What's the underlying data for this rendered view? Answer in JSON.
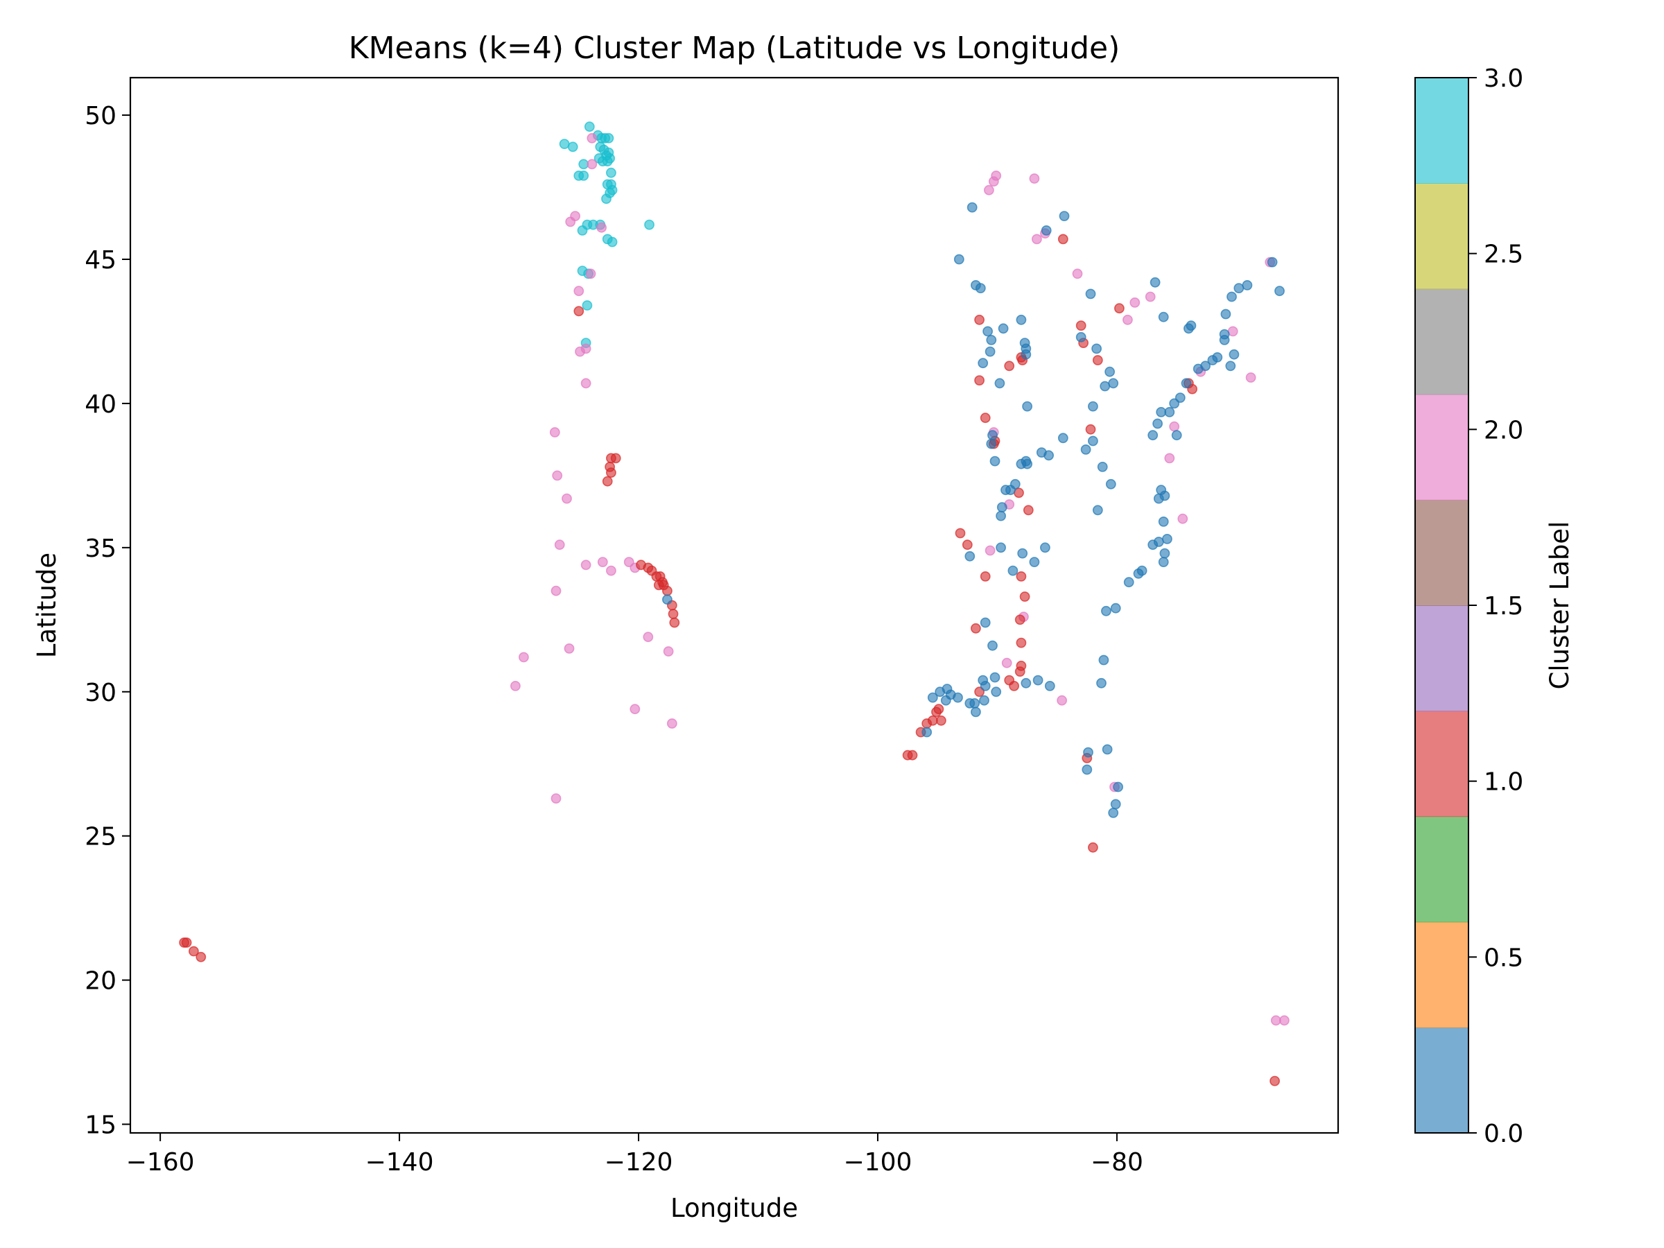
{
  "chart_data": {
    "type": "scatter",
    "title": "KMeans (k=4) Cluster Map (Latitude vs Longitude)",
    "xlabel": "Longitude",
    "ylabel": "Latitude",
    "xlim": [
      -162.5,
      -61.5
    ],
    "ylim": [
      14.7,
      51.3
    ],
    "xticks": [
      -160,
      -140,
      -120,
      -100,
      -80
    ],
    "xtick_labels": [
      "−160",
      "−140",
      "−120",
      "−100",
      "−80"
    ],
    "yticks": [
      15,
      20,
      25,
      30,
      35,
      40,
      45,
      50
    ],
    "ytick_labels": [
      "15",
      "20",
      "25",
      "30",
      "35",
      "40",
      "45",
      "50"
    ],
    "grid": false,
    "colorbar": {
      "label": "Cluster Label",
      "range": [
        0,
        3
      ],
      "ticks": [
        0,
        0.5,
        1,
        1.5,
        2,
        2.5,
        3
      ],
      "tick_labels": [
        "0.0",
        "0.5",
        "1.0",
        "1.5",
        "2.0",
        "2.5",
        "3.0"
      ],
      "colors": [
        "#1f77b4",
        "#ff7f0e",
        "#2ca02c",
        "#d62728",
        "#9467bd",
        "#8c564b",
        "#e377c2",
        "#7f7f7f",
        "#bcbd22",
        "#17becf"
      ]
    },
    "cluster_colors": {
      "0": "#1f77b4",
      "1": "#d62728",
      "2": "#e377c2",
      "3": "#17becf"
    },
    "series": [
      {
        "cluster": 3,
        "points": [
          [
            -124.1,
            49.6
          ],
          [
            -123.4,
            49.3
          ],
          [
            -123.1,
            49.2
          ],
          [
            -122.8,
            49.2
          ],
          [
            -122.5,
            49.2
          ],
          [
            -123.2,
            48.9
          ],
          [
            -122.9,
            48.8
          ],
          [
            -122.5,
            48.7
          ],
          [
            -123.3,
            48.5
          ],
          [
            -122.7,
            48.6
          ],
          [
            -122.4,
            48.5
          ],
          [
            -123.0,
            48.4
          ],
          [
            -122.6,
            48.4
          ],
          [
            -124.6,
            48.3
          ],
          [
            -122.3,
            48.0
          ],
          [
            -125.0,
            47.9
          ],
          [
            -124.6,
            47.9
          ],
          [
            -122.6,
            47.6
          ],
          [
            -122.3,
            47.6
          ],
          [
            -122.4,
            47.3
          ],
          [
            -122.2,
            47.4
          ],
          [
            -122.7,
            47.1
          ],
          [
            -126.2,
            49.0
          ],
          [
            -125.5,
            48.9
          ],
          [
            -119.1,
            46.2
          ],
          [
            -124.3,
            46.2
          ],
          [
            -123.8,
            46.2
          ],
          [
            -123.2,
            46.2
          ],
          [
            -124.7,
            46.0
          ],
          [
            -122.6,
            45.7
          ],
          [
            -122.2,
            45.6
          ],
          [
            -124.7,
            44.6
          ],
          [
            -124.2,
            44.5
          ],
          [
            -124.3,
            43.4
          ],
          [
            -124.4,
            42.1
          ]
        ]
      },
      {
        "cluster": 2,
        "points": [
          [
            -123.9,
            49.2
          ],
          [
            -123.9,
            48.3
          ],
          [
            -123.1,
            46.1
          ],
          [
            -125.7,
            46.3
          ],
          [
            -125.3,
            46.5
          ],
          [
            -124.0,
            44.5
          ],
          [
            -125.0,
            43.9
          ],
          [
            -124.4,
            41.9
          ],
          [
            -124.9,
            41.8
          ],
          [
            -124.4,
            40.7
          ],
          [
            -127.0,
            39.0
          ],
          [
            -126.8,
            37.5
          ],
          [
            -126.0,
            36.7
          ],
          [
            -126.6,
            35.1
          ],
          [
            -124.4,
            34.4
          ],
          [
            -123.0,
            34.5
          ],
          [
            -122.3,
            34.2
          ],
          [
            -120.8,
            34.5
          ],
          [
            -120.3,
            34.3
          ],
          [
            -126.9,
            33.5
          ],
          [
            -119.2,
            31.9
          ],
          [
            -117.5,
            31.4
          ],
          [
            -125.8,
            31.5
          ],
          [
            -129.6,
            31.2
          ],
          [
            -130.3,
            30.2
          ],
          [
            -120.3,
            29.4
          ],
          [
            -117.2,
            28.9
          ],
          [
            -126.9,
            26.3
          ],
          [
            -90.1,
            47.9
          ],
          [
            -90.7,
            47.4
          ],
          [
            -90.3,
            47.7
          ],
          [
            -86.9,
            47.8
          ],
          [
            -86.7,
            45.7
          ],
          [
            -86.0,
            45.9
          ],
          [
            -83.3,
            44.5
          ],
          [
            -78.5,
            43.5
          ],
          [
            -77.2,
            43.7
          ],
          [
            -79.1,
            42.9
          ],
          [
            -75.2,
            39.2
          ],
          [
            -75.6,
            38.1
          ],
          [
            -74.5,
            36.0
          ],
          [
            -73.0,
            41.1
          ],
          [
            -70.3,
            42.5
          ],
          [
            -68.8,
            40.9
          ],
          [
            -67.2,
            44.9
          ],
          [
            -90.3,
            39.0
          ],
          [
            -89.0,
            36.5
          ],
          [
            -90.6,
            34.9
          ],
          [
            -89.2,
            31.0
          ],
          [
            -87.8,
            32.6
          ],
          [
            -84.6,
            29.7
          ],
          [
            -80.2,
            26.7
          ],
          [
            -66.7,
            18.6
          ],
          [
            -66.0,
            18.6
          ]
        ]
      },
      {
        "cluster": 1,
        "points": [
          [
            -158.0,
            21.3
          ],
          [
            -157.8,
            21.3
          ],
          [
            -157.2,
            21.0
          ],
          [
            -156.6,
            20.8
          ],
          [
            -125.0,
            43.2
          ],
          [
            -122.3,
            38.1
          ],
          [
            -121.9,
            38.1
          ],
          [
            -122.4,
            37.8
          ],
          [
            -122.3,
            37.6
          ],
          [
            -122.6,
            37.3
          ],
          [
            -119.8,
            34.4
          ],
          [
            -119.2,
            34.3
          ],
          [
            -118.9,
            34.2
          ],
          [
            -118.5,
            34.0
          ],
          [
            -118.2,
            34.0
          ],
          [
            -118.0,
            33.8
          ],
          [
            -117.9,
            33.7
          ],
          [
            -118.3,
            33.7
          ],
          [
            -117.6,
            33.5
          ],
          [
            -117.2,
            33.0
          ],
          [
            -117.1,
            32.7
          ],
          [
            -117.0,
            32.4
          ],
          [
            -97.5,
            27.8
          ],
          [
            -97.1,
            27.8
          ],
          [
            -95.9,
            28.9
          ],
          [
            -95.4,
            29.0
          ],
          [
            -95.1,
            29.3
          ],
          [
            -94.9,
            29.4
          ],
          [
            -94.7,
            29.0
          ],
          [
            -96.4,
            28.6
          ],
          [
            -93.1,
            35.5
          ],
          [
            -92.5,
            35.1
          ],
          [
            -91.5,
            42.9
          ],
          [
            -91.5,
            40.8
          ],
          [
            -91.0,
            39.5
          ],
          [
            -90.3,
            38.6
          ],
          [
            -90.2,
            38.7
          ],
          [
            -89.0,
            41.3
          ],
          [
            -88.0,
            41.6
          ],
          [
            -87.9,
            41.5
          ],
          [
            -88.2,
            36.9
          ],
          [
            -87.4,
            36.3
          ],
          [
            -88.0,
            34.0
          ],
          [
            -87.7,
            33.3
          ],
          [
            -88.1,
            32.5
          ],
          [
            -88.0,
            31.7
          ],
          [
            -88.0,
            30.9
          ],
          [
            -88.1,
            30.7
          ],
          [
            -89.0,
            30.4
          ],
          [
            -88.6,
            30.2
          ],
          [
            -91.0,
            34.0
          ],
          [
            -91.8,
            32.2
          ],
          [
            -91.5,
            30.0
          ],
          [
            -84.5,
            45.7
          ],
          [
            -83.0,
            42.7
          ],
          [
            -82.8,
            42.1
          ],
          [
            -81.6,
            41.5
          ],
          [
            -82.2,
            39.1
          ],
          [
            -79.8,
            43.3
          ],
          [
            -73.7,
            40.5
          ],
          [
            -74.0,
            40.7
          ],
          [
            -82.0,
            24.6
          ],
          [
            -82.5,
            27.7
          ],
          [
            -66.8,
            16.5
          ]
        ]
      },
      {
        "cluster": 0,
        "points": [
          [
            -117.6,
            33.2
          ],
          [
            -92.1,
            46.8
          ],
          [
            -93.2,
            45.0
          ],
          [
            -91.8,
            44.1
          ],
          [
            -91.4,
            44.0
          ],
          [
            -90.8,
            42.5
          ],
          [
            -90.5,
            42.2
          ],
          [
            -90.6,
            41.8
          ],
          [
            -89.5,
            42.6
          ],
          [
            -91.2,
            41.4
          ],
          [
            -89.8,
            40.7
          ],
          [
            -90.4,
            38.9
          ],
          [
            -90.5,
            38.6
          ],
          [
            -90.2,
            38.0
          ],
          [
            -89.3,
            37.0
          ],
          [
            -88.9,
            37.0
          ],
          [
            -88.5,
            37.2
          ],
          [
            -89.6,
            36.4
          ],
          [
            -89.7,
            36.1
          ],
          [
            -88.0,
            42.9
          ],
          [
            -87.7,
            42.1
          ],
          [
            -87.6,
            41.9
          ],
          [
            -87.6,
            41.7
          ],
          [
            -87.5,
            39.9
          ],
          [
            -87.6,
            38.0
          ],
          [
            -87.5,
            37.9
          ],
          [
            -86.3,
            38.3
          ],
          [
            -85.7,
            38.2
          ],
          [
            -84.5,
            38.8
          ],
          [
            -86.0,
            35.0
          ],
          [
            -86.9,
            34.5
          ],
          [
            -87.9,
            34.8
          ],
          [
            -87.6,
            30.3
          ],
          [
            -90.2,
            30.5
          ],
          [
            -90.1,
            30.0
          ],
          [
            -91.2,
            30.4
          ],
          [
            -91.9,
            29.6
          ],
          [
            -91.1,
            29.7
          ],
          [
            -91.0,
            30.2
          ],
          [
            -92.3,
            29.6
          ],
          [
            -91.8,
            29.3
          ],
          [
            -93.3,
            29.8
          ],
          [
            -93.9,
            29.9
          ],
          [
            -94.2,
            30.1
          ],
          [
            -94.8,
            30.0
          ],
          [
            -95.4,
            29.8
          ],
          [
            -95.9,
            28.6
          ],
          [
            -94.3,
            29.7
          ],
          [
            -92.3,
            34.7
          ],
          [
            -91.0,
            32.4
          ],
          [
            -85.9,
            46.0
          ],
          [
            -84.4,
            46.5
          ],
          [
            -82.2,
            43.8
          ],
          [
            -83.0,
            42.3
          ],
          [
            -81.7,
            41.9
          ],
          [
            -80.6,
            41.1
          ],
          [
            -80.3,
            40.7
          ],
          [
            -81.0,
            40.6
          ],
          [
            -82.0,
            39.9
          ],
          [
            -82.6,
            38.4
          ],
          [
            -81.2,
            37.8
          ],
          [
            -82.0,
            38.7
          ],
          [
            -80.5,
            37.2
          ],
          [
            -81.6,
            36.3
          ],
          [
            -80.9,
            32.8
          ],
          [
            -80.1,
            32.9
          ],
          [
            -81.1,
            31.1
          ],
          [
            -81.3,
            30.3
          ],
          [
            -80.8,
            28.0
          ],
          [
            -82.4,
            27.9
          ],
          [
            -82.5,
            27.3
          ],
          [
            -80.3,
            25.8
          ],
          [
            -80.1,
            26.1
          ],
          [
            -79.9,
            26.7
          ],
          [
            -76.1,
            43.0
          ],
          [
            -76.8,
            44.2
          ],
          [
            -74.0,
            42.6
          ],
          [
            -73.8,
            42.7
          ],
          [
            -73.2,
            41.2
          ],
          [
            -72.6,
            41.3
          ],
          [
            -72.0,
            41.5
          ],
          [
            -71.6,
            41.6
          ],
          [
            -71.0,
            42.2
          ],
          [
            -71.0,
            42.4
          ],
          [
            -70.4,
            43.7
          ],
          [
            -69.8,
            44.0
          ],
          [
            -69.1,
            44.1
          ],
          [
            -70.9,
            43.1
          ],
          [
            -70.2,
            41.7
          ],
          [
            -70.5,
            41.3
          ],
          [
            -67.0,
            44.9
          ],
          [
            -66.4,
            43.9
          ],
          [
            -77.0,
            38.9
          ],
          [
            -76.6,
            39.3
          ],
          [
            -76.3,
            39.7
          ],
          [
            -75.6,
            39.7
          ],
          [
            -75.2,
            40.0
          ],
          [
            -74.7,
            40.2
          ],
          [
            -74.2,
            40.7
          ],
          [
            -75.0,
            38.9
          ],
          [
            -76.3,
            37.0
          ],
          [
            -76.0,
            36.8
          ],
          [
            -76.5,
            36.7
          ],
          [
            -76.1,
            35.9
          ],
          [
            -77.0,
            35.1
          ],
          [
            -76.5,
            35.2
          ],
          [
            -76.0,
            34.8
          ],
          [
            -75.8,
            35.3
          ],
          [
            -77.9,
            34.2
          ],
          [
            -79.0,
            33.8
          ],
          [
            -78.2,
            34.1
          ],
          [
            -76.1,
            34.5
          ],
          [
            -89.7,
            35.0
          ],
          [
            -88.7,
            34.2
          ],
          [
            -90.4,
            31.6
          ],
          [
            -86.6,
            30.4
          ],
          [
            -85.6,
            30.2
          ],
          [
            -88.0,
            37.9
          ]
        ]
      }
    ]
  }
}
